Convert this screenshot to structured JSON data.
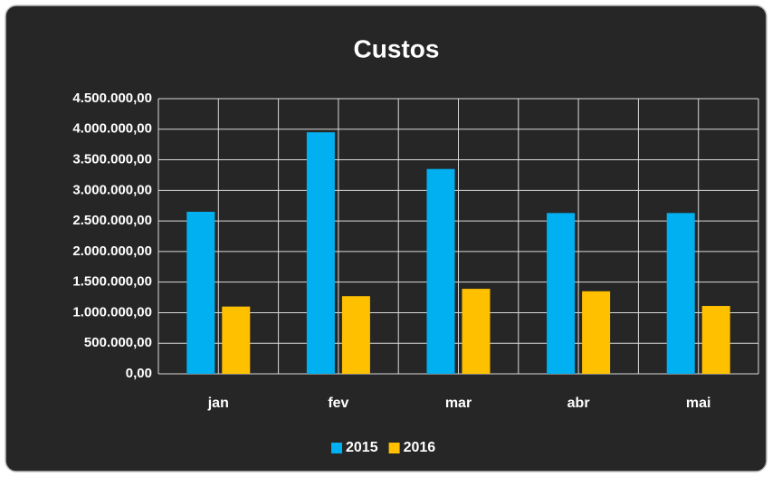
{
  "chart_data": {
    "type": "bar",
    "title": "Custos",
    "categories": [
      "jan",
      "fev",
      "mar",
      "abr",
      "mai"
    ],
    "series": [
      {
        "name": "2015",
        "color": "#00b0f0",
        "values": [
          2650000,
          3950000,
          3350000,
          2630000,
          2630000
        ]
      },
      {
        "name": "2016",
        "color": "#ffc000",
        "values": [
          1100000,
          1270000,
          1390000,
          1350000,
          1110000
        ]
      }
    ],
    "ylim": [
      0,
      4500000
    ],
    "yticks": [
      {
        "value": 0,
        "label": "0,00"
      },
      {
        "value": 500000,
        "label": "500.000,00"
      },
      {
        "value": 1000000,
        "label": "1.000.000,00"
      },
      {
        "value": 1500000,
        "label": "1.500.000,00"
      },
      {
        "value": 2000000,
        "label": "2.000.000,00"
      },
      {
        "value": 2500000,
        "label": "2.500.000,00"
      },
      {
        "value": 3000000,
        "label": "3.000.000,00"
      },
      {
        "value": 3500000,
        "label": "3.500.000,00"
      },
      {
        "value": 4000000,
        "label": "4.000.000,00"
      },
      {
        "value": 4500000,
        "label": "4.500.000,00"
      }
    ],
    "grid": true,
    "legend": "bottom"
  }
}
